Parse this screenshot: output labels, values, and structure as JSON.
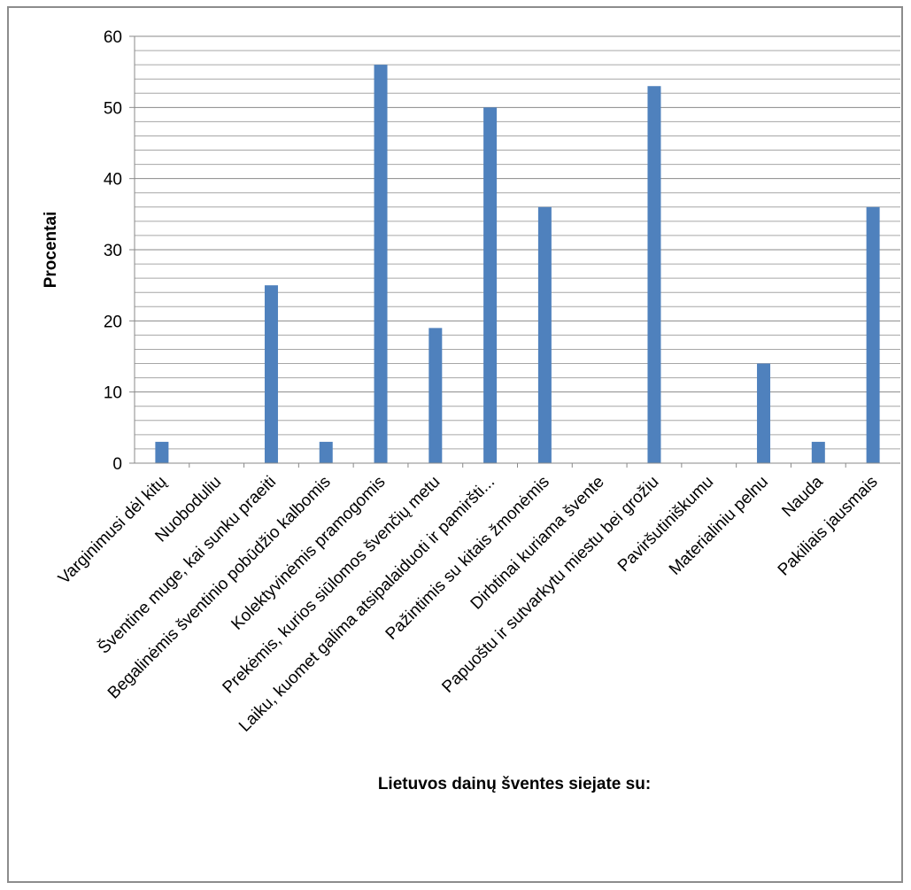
{
  "chart_data": {
    "type": "bar",
    "title": "",
    "xlabel": "Lietuvos dainų šventes siejate su:",
    "ylabel": "Procentai",
    "ylim": [
      0,
      60
    ],
    "yticks": [
      0,
      10,
      20,
      30,
      40,
      50,
      60
    ],
    "minor_gridlines_step": 2,
    "grid": true,
    "legend": "none",
    "bar_color": "#4f81bd",
    "categories": [
      "Varginimusi dėl kitų",
      "Nuoboduliu",
      "Šventine muge, kai sunku praeiti",
      "Begalinėmis šventinio pobūdžio kalbomis",
      "Kolektyvinėmis pramogomis",
      "Prekėmis, kurios siūlomos švenčių metu",
      "Laiku, kuomet galima atsipalaiduoti ir pamiršti...",
      "Pažintimis su kitais žmonėmis",
      "Dirbtinai kuriama švente",
      "Papuoštu ir sutvarkytu miestu bei grožiu",
      "Paviršutiniškumu",
      "Materialiniu pelnu",
      "Nauda",
      "Pakiliais jausmais"
    ],
    "values": [
      3,
      0,
      25,
      3,
      56,
      19,
      50,
      36,
      0,
      53,
      0,
      14,
      3,
      36
    ]
  }
}
